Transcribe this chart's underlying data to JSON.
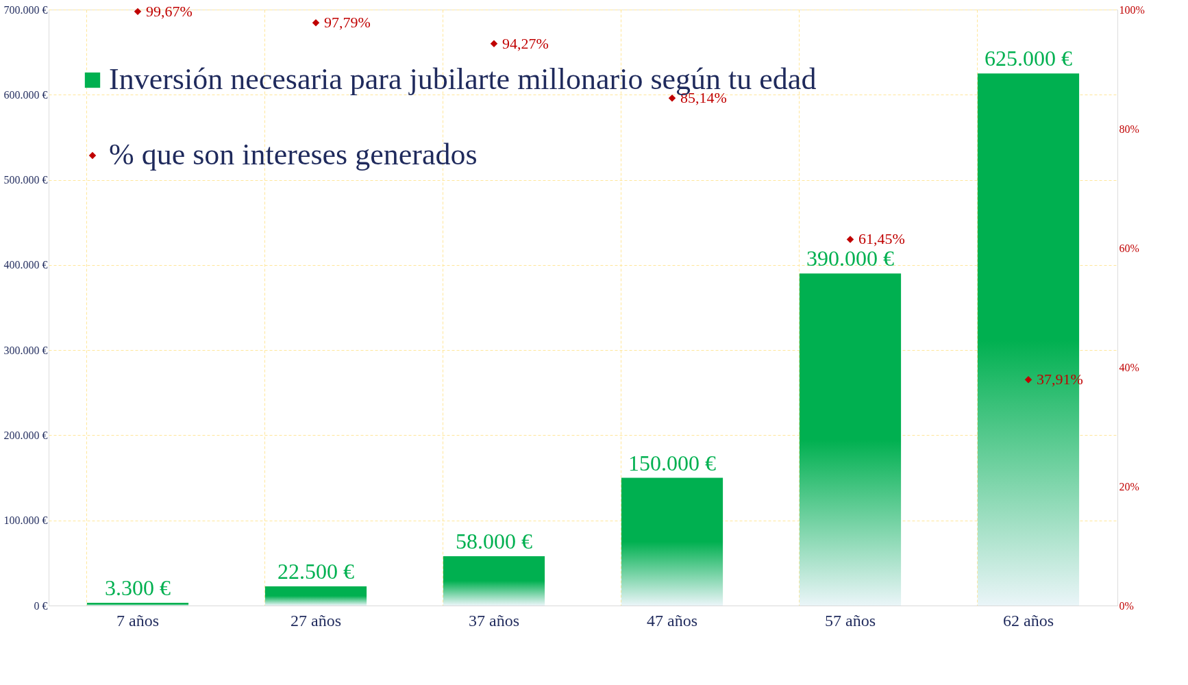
{
  "chart_data": {
    "type": "bar",
    "categories": [
      "7 años",
      "27 años",
      "37 años",
      "47 años",
      "57 años",
      "62 años"
    ],
    "series": [
      {
        "name": "Inversión necesaria para jubilarte millonario según tu edad",
        "color": "#00b050",
        "values": [
          3300,
          22500,
          58000,
          150000,
          390000,
          625000
        ],
        "value_labels": [
          "3.300 €",
          "22.500 €",
          "58.000 €",
          "150.000 €",
          "390.000 €",
          "625.000 €"
        ]
      },
      {
        "name": "% que son intereses generados",
        "type": "scatter",
        "axis": "y2",
        "color": "#c00000",
        "marker": "diamond",
        "values": [
          99.67,
          97.79,
          94.27,
          85.14,
          61.45,
          37.91
        ],
        "value_labels": [
          "99,67%",
          "97,79%",
          "94,27%",
          "85,14%",
          "61,45%",
          "37,91%"
        ]
      }
    ],
    "ylim": [
      0,
      700000
    ],
    "yticks": [
      {
        "value": 0,
        "label": "0 €"
      },
      {
        "value": 100000,
        "label": "100.000 €"
      },
      {
        "value": 200000,
        "label": "200.000 €"
      },
      {
        "value": 300000,
        "label": "300.000 €"
      },
      {
        "value": 400000,
        "label": "400.000 €"
      },
      {
        "value": 500000,
        "label": "500.000 €"
      },
      {
        "value": 600000,
        "label": "600.000 €"
      },
      {
        "value": 700000,
        "label": "700.000 €"
      }
    ],
    "y2lim": [
      0,
      100
    ],
    "y2ticks": [
      {
        "value": 0,
        "label": "0%"
      },
      {
        "value": 20,
        "label": "20%"
      },
      {
        "value": 40,
        "label": "40%"
      },
      {
        "value": 60,
        "label": "60%"
      },
      {
        "value": 80,
        "label": "80%"
      },
      {
        "value": 100,
        "label": "100%"
      }
    ],
    "grid": true,
    "legend": "top left"
  }
}
